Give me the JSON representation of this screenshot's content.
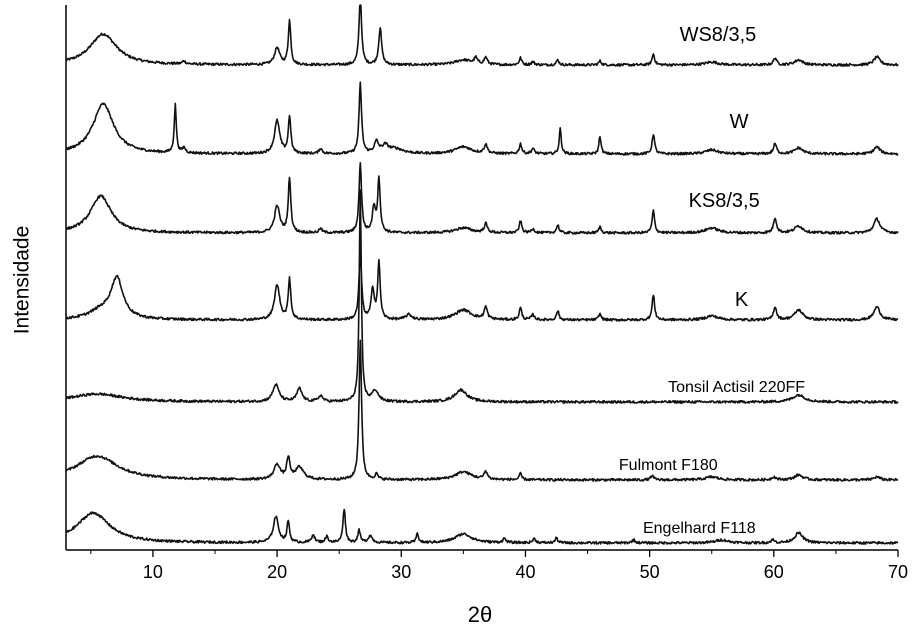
{
  "chart_data": {
    "type": "line",
    "xlabel": "2θ",
    "ylabel": "Intensidade",
    "xlim": [
      3,
      70
    ],
    "xticks": [
      10,
      20,
      30,
      40,
      50,
      60,
      70
    ],
    "grid": false,
    "legend": "none",
    "series": [
      {
        "name": "WS8/3,5",
        "baseline": 20,
        "label_x": 55.5,
        "label_size": 20,
        "peaks": [
          [
            6.0,
            31,
            1.3
          ],
          [
            12.5,
            3,
            0.15
          ],
          [
            20.0,
            17,
            0.25
          ],
          [
            21.0,
            44,
            0.12
          ],
          [
            26.7,
            70,
            0.12
          ],
          [
            28.3,
            37,
            0.14
          ],
          [
            35.0,
            5,
            0.8
          ],
          [
            36.0,
            6,
            0.15
          ],
          [
            36.8,
            7,
            0.15
          ],
          [
            39.6,
            7,
            0.12
          ],
          [
            40.6,
            3,
            0.15
          ],
          [
            42.6,
            5,
            0.12
          ],
          [
            46.0,
            4,
            0.12
          ],
          [
            50.3,
            11,
            0.12
          ],
          [
            55.0,
            3,
            0.6
          ],
          [
            60.1,
            7,
            0.15
          ],
          [
            62.0,
            5,
            0.4
          ],
          [
            68.3,
            8,
            0.3
          ]
        ]
      },
      {
        "name": "W",
        "baseline": 19,
        "label_x": 57.2,
        "label_size": 20,
        "peaks": [
          [
            6.0,
            50,
            1.0
          ],
          [
            11.8,
            48,
            0.1
          ],
          [
            12.5,
            5,
            0.15
          ],
          [
            20.0,
            33,
            0.25
          ],
          [
            21.0,
            37,
            0.12
          ],
          [
            23.5,
            5,
            0.15
          ],
          [
            26.7,
            70,
            0.12
          ],
          [
            28.0,
            11,
            0.2
          ],
          [
            28.7,
            7,
            0.3
          ],
          [
            29.5,
            5,
            0.8
          ],
          [
            35.0,
            7,
            0.8
          ],
          [
            36.8,
            9,
            0.15
          ],
          [
            39.6,
            10,
            0.12
          ],
          [
            40.6,
            5,
            0.15
          ],
          [
            42.8,
            25,
            0.1
          ],
          [
            46.0,
            18,
            0.1
          ],
          [
            50.3,
            20,
            0.12
          ],
          [
            55.0,
            4,
            0.6
          ],
          [
            60.1,
            10,
            0.15
          ],
          [
            62.0,
            6,
            0.4
          ],
          [
            68.3,
            7,
            0.3
          ]
        ]
      },
      {
        "name": "KS8/3,5",
        "baseline": 18,
        "label_x": 56.0,
        "label_size": 20,
        "peaks": [
          [
            5.8,
            37,
            1.0
          ],
          [
            20.0,
            27,
            0.25
          ],
          [
            21.0,
            55,
            0.12
          ],
          [
            23.5,
            4,
            0.15
          ],
          [
            26.7,
            70,
            0.12
          ],
          [
            27.8,
            25,
            0.15
          ],
          [
            28.2,
            53,
            0.12
          ],
          [
            35.0,
            5,
            0.8
          ],
          [
            36.8,
            9,
            0.15
          ],
          [
            39.6,
            12,
            0.12
          ],
          [
            40.6,
            4,
            0.15
          ],
          [
            42.6,
            8,
            0.12
          ],
          [
            46.0,
            6,
            0.12
          ],
          [
            50.3,
            22,
            0.12
          ],
          [
            55.0,
            5,
            0.6
          ],
          [
            60.1,
            15,
            0.15
          ],
          [
            62.0,
            7,
            0.4
          ],
          [
            68.3,
            14,
            0.3
          ]
        ]
      },
      {
        "name": "K",
        "baseline": 20,
        "label_x": 57.4,
        "label_size": 20,
        "peaks": [
          [
            7.1,
            40,
            0.6
          ],
          [
            5.8,
            8,
            1.2
          ],
          [
            20.0,
            35,
            0.25
          ],
          [
            21.0,
            41,
            0.12
          ],
          [
            26.7,
            70,
            0.12
          ],
          [
            27.7,
            30,
            0.15
          ],
          [
            28.2,
            56,
            0.12
          ],
          [
            30.6,
            5,
            0.3
          ],
          [
            35.0,
            10,
            0.8
          ],
          [
            36.8,
            12,
            0.15
          ],
          [
            39.6,
            12,
            0.12
          ],
          [
            40.6,
            5,
            0.15
          ],
          [
            42.6,
            9,
            0.12
          ],
          [
            46.0,
            6,
            0.12
          ],
          [
            50.3,
            25,
            0.12
          ],
          [
            55.0,
            4,
            0.6
          ],
          [
            60.1,
            13,
            0.15
          ],
          [
            62.0,
            10,
            0.4
          ],
          [
            68.3,
            13,
            0.3
          ]
        ]
      },
      {
        "name": "Tonsil Actisil 220FF",
        "baseline": 22,
        "label_x": 57.0,
        "label_size": 16,
        "peaks": [
          [
            5.5,
            8,
            2.5
          ],
          [
            19.9,
            17,
            0.3
          ],
          [
            21.8,
            13,
            0.25
          ],
          [
            23.5,
            6,
            0.2
          ],
          [
            26.7,
            210,
            0.1
          ],
          [
            27.9,
            11,
            0.3
          ],
          [
            34.8,
            12,
            0.6
          ],
          [
            62.0,
            7,
            0.6
          ]
        ]
      },
      {
        "name": "Fulmont F180",
        "baseline": 20,
        "label_x": 51.5,
        "label_size": 16,
        "peaks": [
          [
            5.5,
            24,
            2.0
          ],
          [
            20.0,
            15,
            0.3
          ],
          [
            20.9,
            21,
            0.15
          ],
          [
            21.8,
            12,
            0.4
          ],
          [
            26.7,
            140,
            0.12
          ],
          [
            28.0,
            5,
            0.15
          ],
          [
            35.0,
            8,
            0.8
          ],
          [
            36.8,
            8,
            0.15
          ],
          [
            39.6,
            6,
            0.12
          ],
          [
            50.2,
            4,
            0.15
          ],
          [
            55.0,
            3,
            0.6
          ],
          [
            60.0,
            3,
            0.2
          ],
          [
            62.0,
            5,
            0.4
          ],
          [
            68.3,
            3,
            0.3
          ]
        ]
      },
      {
        "name": "Engelhard F118",
        "baseline": 20,
        "label_x": 54.0,
        "label_size": 16,
        "peaks": [
          [
            5.2,
            30,
            1.6
          ],
          [
            19.9,
            26,
            0.25
          ],
          [
            20.9,
            21,
            0.12
          ],
          [
            22.9,
            8,
            0.15
          ],
          [
            24.0,
            6,
            0.15
          ],
          [
            25.4,
            34,
            0.12
          ],
          [
            26.6,
            12,
            0.12
          ],
          [
            27.5,
            7,
            0.2
          ],
          [
            31.3,
            10,
            0.1
          ],
          [
            35.0,
            9,
            0.8
          ],
          [
            38.3,
            4,
            0.15
          ],
          [
            40.7,
            4,
            0.15
          ],
          [
            42.5,
            5,
            0.12
          ],
          [
            48.7,
            3,
            0.15
          ],
          [
            55.8,
            3,
            0.6
          ],
          [
            59.9,
            3,
            0.15
          ],
          [
            62.0,
            10,
            0.4
          ]
        ]
      }
    ]
  }
}
